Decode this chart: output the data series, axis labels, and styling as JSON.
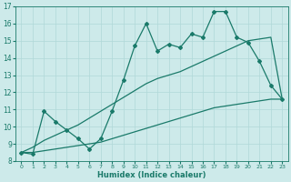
{
  "xlabel": "Humidex (Indice chaleur)",
  "ylabel": "",
  "x_values": [
    0,
    1,
    2,
    3,
    4,
    5,
    6,
    7,
    8,
    9,
    10,
    11,
    12,
    13,
    14,
    15,
    16,
    17,
    18,
    19,
    20,
    21,
    22,
    23
  ],
  "line1": [
    8.5,
    8.4,
    10.9,
    10.3,
    9.8,
    9.3,
    8.7,
    9.3,
    10.9,
    12.7,
    14.7,
    16.0,
    14.4,
    14.8,
    14.6,
    15.4,
    15.2,
    16.7,
    16.7,
    15.2,
    14.9,
    13.8,
    12.4,
    11.6
  ],
  "line2": [
    8.5,
    8.8,
    9.2,
    9.5,
    9.8,
    10.1,
    10.5,
    10.9,
    11.3,
    11.7,
    12.1,
    12.5,
    12.8,
    13.0,
    13.2,
    13.5,
    13.8,
    14.1,
    14.4,
    14.7,
    15.0,
    15.1,
    15.2,
    11.6
  ],
  "line3": [
    8.5,
    8.5,
    8.6,
    8.7,
    8.8,
    8.9,
    9.0,
    9.1,
    9.3,
    9.5,
    9.7,
    9.9,
    10.1,
    10.3,
    10.5,
    10.7,
    10.9,
    11.1,
    11.2,
    11.3,
    11.4,
    11.5,
    11.6,
    11.6
  ],
  "line_color": "#1a7a6a",
  "bg_color": "#cdeaea",
  "grid_color": "#b0d8d8",
  "ylim": [
    8,
    17
  ],
  "xlim": [
    -0.5,
    23.5
  ],
  "yticks": [
    8,
    9,
    10,
    11,
    12,
    13,
    14,
    15,
    16,
    17
  ],
  "xticks": [
    0,
    1,
    2,
    3,
    4,
    5,
    6,
    7,
    8,
    9,
    10,
    11,
    12,
    13,
    14,
    15,
    16,
    17,
    18,
    19,
    20,
    21,
    22,
    23
  ]
}
